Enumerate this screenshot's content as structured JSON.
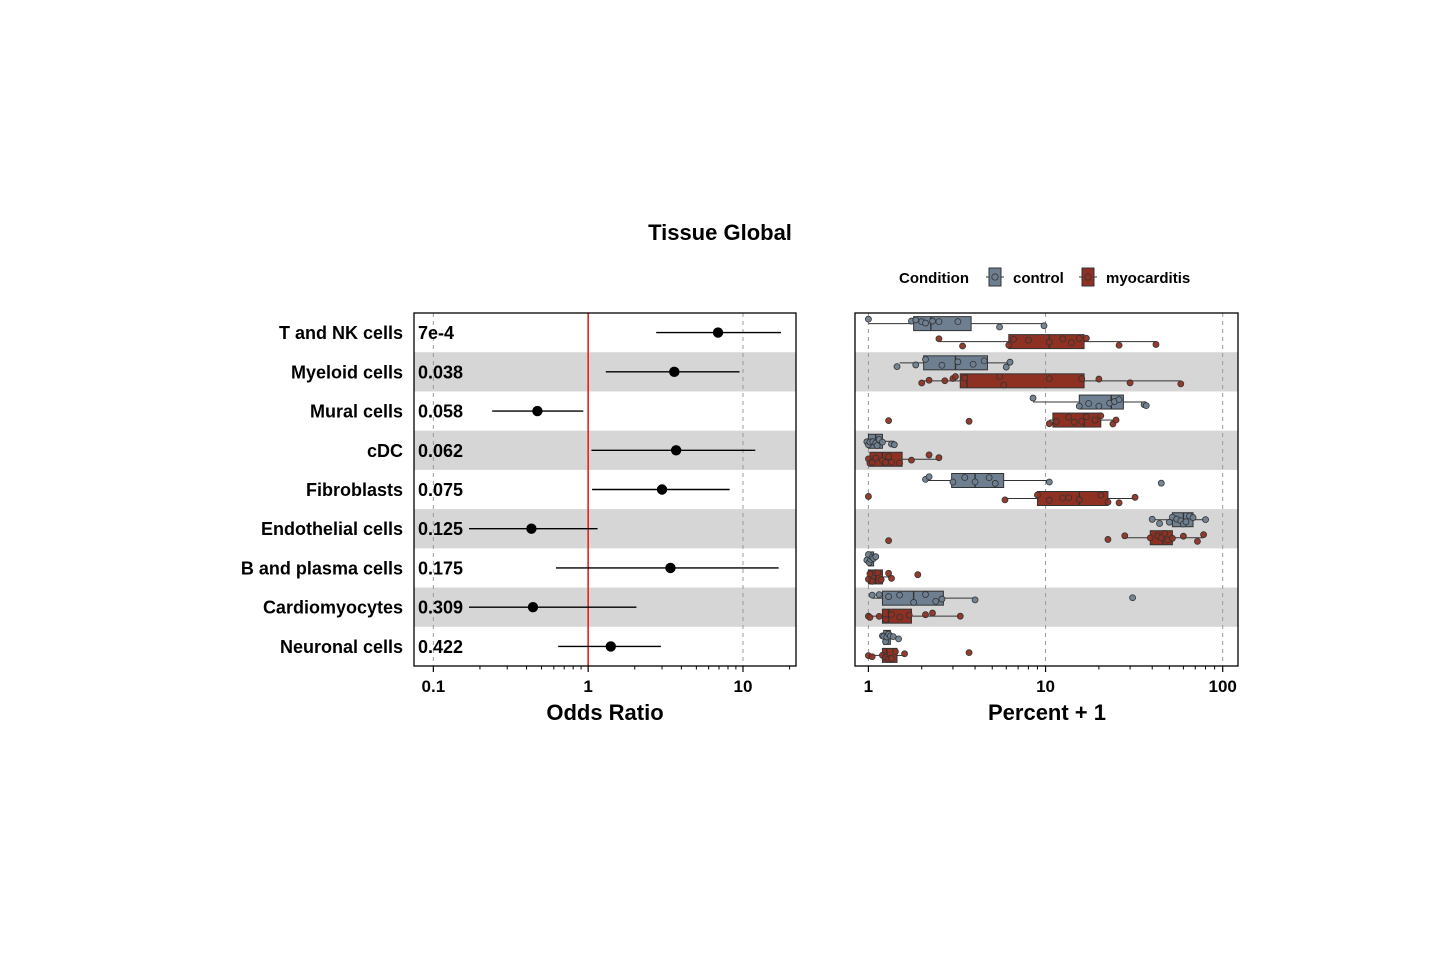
{
  "title": "Tissue Global",
  "legend": {
    "title": "Condition",
    "items": [
      {
        "label": "control",
        "color": "#6e7f91"
      },
      {
        "label": "myocarditis",
        "color": "#8e3123"
      }
    ]
  },
  "chart_data": [
    {
      "type": "forest",
      "xlabel": "Odds Ratio",
      "xscale": "log",
      "xlim": [
        0.075,
        22
      ],
      "xticks": [
        {
          "value": 0.1,
          "label": "0.1"
        },
        {
          "value": 1,
          "label": "1"
        },
        {
          "value": 10,
          "label": "10"
        }
      ],
      "reference_line": {
        "value": 1,
        "color": "#e8231e"
      },
      "row_shading": "alternating grey",
      "rows": [
        {
          "label": "T and NK cells",
          "pval": "7e-4",
          "or": 6.9,
          "lo": 2.75,
          "hi": 17.6
        },
        {
          "label": "Myeloid cells",
          "pval": "0.038",
          "or": 3.6,
          "lo": 1.3,
          "hi": 9.5
        },
        {
          "label": "Mural cells",
          "pval": "0.058",
          "or": 0.47,
          "lo": 0.24,
          "hi": 0.93
        },
        {
          "label": "cDC",
          "pval": "0.062",
          "or": 3.7,
          "lo": 1.05,
          "hi": 12.0
        },
        {
          "label": "Fibroblasts",
          "pval": "0.075",
          "or": 3.0,
          "lo": 1.06,
          "hi": 8.2
        },
        {
          "label": "Endothelial cells",
          "pval": "0.125",
          "or": 0.43,
          "lo": 0.17,
          "hi": 1.15
        },
        {
          "label": "B and plasma cells",
          "pval": "0.175",
          "or": 3.4,
          "lo": 0.62,
          "hi": 17.0
        },
        {
          "label": "Cardiomyocytes",
          "pval": "0.309",
          "or": 0.44,
          "lo": 0.17,
          "hi": 2.05
        },
        {
          "label": "Neuronal cells",
          "pval": "0.422",
          "or": 1.4,
          "lo": 0.64,
          "hi": 2.95
        }
      ]
    },
    {
      "type": "boxplot",
      "xlabel": "Percent + 1",
      "xscale": "log",
      "xlim": [
        0.84,
        122
      ],
      "xticks": [
        {
          "value": 1,
          "label": "1"
        },
        {
          "value": 10,
          "label": "10"
        },
        {
          "value": 100,
          "label": "100"
        }
      ],
      "grid": "vertical dashed at ticks",
      "series_names": [
        "control",
        "myocarditis"
      ],
      "rows": [
        {
          "label": "T and NK cells",
          "control": {
            "whisker_low": 1.0,
            "q1": 1.8,
            "median": 2.25,
            "q3": 3.8,
            "whisker_high": 9.8,
            "points": [
              1.0,
              1.75,
              1.85,
              2.0,
              2.1,
              2.3,
              2.5,
              3.2,
              5.5,
              9.8
            ]
          },
          "myocarditis": {
            "whisker_low": 2.5,
            "q1": 6.2,
            "median": 10.5,
            "q3": 16.5,
            "whisker_high": 42,
            "points": [
              2.5,
              3.4,
              6.2,
              6.6,
              8.0,
              10.5,
              12.5,
              14.0,
              15.5,
              17.0,
              26,
              42
            ]
          }
        },
        {
          "label": "Myeloid cells",
          "control": {
            "whisker_low": 1.5,
            "q1": 2.05,
            "median": 3.1,
            "q3": 4.7,
            "whisker_high": 6.2,
            "points": [
              1.45,
              1.85,
              2.1,
              2.6,
              3.2,
              3.9,
              4.5,
              6.0,
              6.3
            ]
          },
          "myocarditis": {
            "whisker_low": 2.0,
            "q1": 3.3,
            "median": 3.6,
            "q3": 16.5,
            "whisker_high": 58,
            "points": [
              2.0,
              2.2,
              2.7,
              3.0,
              3.1,
              3.5,
              5.5,
              5.8,
              10.5,
              16.0,
              20,
              30,
              58
            ]
          }
        },
        {
          "label": "Mural cells",
          "control": {
            "whisker_low": 8.5,
            "q1": 15.5,
            "median": 23.5,
            "q3": 27.5,
            "whisker_high": 37,
            "points": [
              8.5,
              15.5,
              17.5,
              20,
              23,
              24.5,
              26,
              36,
              37
            ]
          },
          "myocarditis": {
            "whisker_low": 10.5,
            "q1": 11.0,
            "median": 16.5,
            "q3": 20.5,
            "whisker_high": 25,
            "points": [
              1.3,
              3.7,
              10.5,
              11.5,
              13.5,
              14.5,
              16,
              17,
              19,
              20.5,
              24,
              25
            ]
          }
        },
        {
          "label": "cDC",
          "control": {
            "whisker_low": 1.0,
            "q1": 1.0,
            "median": 1.1,
            "q3": 1.2,
            "whisker_high": 1.4,
            "points": [
              0.98,
              1.0,
              1.02,
              1.06,
              1.1,
              1.12,
              1.15,
              1.2,
              1.35,
              1.4
            ]
          },
          "myocarditis": {
            "whisker_low": 1.0,
            "q1": 1.02,
            "median": 1.2,
            "q3": 1.55,
            "whisker_high": 2.5,
            "points": [
              1.0,
              1.02,
              1.05,
              1.1,
              1.2,
              1.25,
              1.3,
              1.35,
              1.5,
              1.75,
              2.2,
              2.5
            ]
          }
        },
        {
          "label": "Fibroblasts",
          "control": {
            "whisker_low": 2.1,
            "q1": 2.95,
            "median": 4.0,
            "q3": 5.8,
            "whisker_high": 10.5,
            "points": [
              2.1,
              2.2,
              3.0,
              3.5,
              4.0,
              4.8,
              5.2,
              10.5,
              45
            ]
          },
          "myocarditis": {
            "whisker_low": 5.9,
            "q1": 9.0,
            "median": 15.5,
            "q3": 22.5,
            "whisker_high": 32,
            "points": [
              1.0,
              5.9,
              9.0,
              10.5,
              12.5,
              13.5,
              15.5,
              20.5,
              22.5,
              26,
              32
            ]
          }
        },
        {
          "label": "Endothelial cells",
          "control": {
            "whisker_low": 40,
            "q1": 52,
            "median": 60,
            "q3": 68,
            "whisker_high": 80,
            "points": [
              40,
              44,
              50,
              52,
              55,
              58,
              60,
              62,
              65,
              68,
              80
            ]
          },
          "myocarditis": {
            "whisker_low": 28,
            "q1": 39,
            "median": 46,
            "q3": 52,
            "whisker_high": 78,
            "points": [
              1.3,
              22.5,
              28,
              39,
              43,
              45,
              47,
              49,
              52,
              60,
              72,
              78
            ]
          }
        },
        {
          "label": "B and plasma cells",
          "control": {
            "whisker_low": 1.0,
            "q1": 1.0,
            "median": 1.03,
            "q3": 1.07,
            "whisker_high": 1.1,
            "points": [
              0.98,
              1.0,
              1.01,
              1.03,
              1.05,
              1.07,
              1.1
            ]
          },
          "myocarditis": {
            "whisker_low": 1.0,
            "q1": 1.0,
            "median": 1.1,
            "q3": 1.2,
            "whisker_high": 1.35,
            "points": [
              1.0,
              1.02,
              1.05,
              1.1,
              1.13,
              1.18,
              1.3,
              1.35,
              1.9
            ]
          }
        },
        {
          "label": "Cardiomyocytes",
          "control": {
            "whisker_low": 1.05,
            "q1": 1.2,
            "median": 1.8,
            "q3": 2.65,
            "whisker_high": 4.0,
            "points": [
              1.05,
              1.15,
              1.3,
              1.5,
              1.8,
              2.1,
              2.4,
              2.6,
              4.0,
              31
            ]
          },
          "myocarditis": {
            "whisker_low": 1.0,
            "q1": 1.2,
            "median": 1.3,
            "q3": 1.75,
            "whisker_high": 3.3,
            "points": [
              1.0,
              1.02,
              1.15,
              1.25,
              1.35,
              1.5,
              1.7,
              2.1,
              2.3,
              3.3
            ]
          }
        },
        {
          "label": "Neuronal cells",
          "control": {
            "whisker_low": 1.2,
            "q1": 1.22,
            "median": 1.27,
            "q3": 1.33,
            "whisker_high": 1.48,
            "points": [
              1.2,
              1.22,
              1.25,
              1.27,
              1.3,
              1.33,
              1.38,
              1.48
            ]
          },
          "myocarditis": {
            "whisker_low": 1.0,
            "q1": 1.2,
            "median": 1.27,
            "q3": 1.45,
            "whisker_high": 1.6,
            "points": [
              1.0,
              1.05,
              1.2,
              1.25,
              1.3,
              1.35,
              1.42,
              1.6,
              3.7
            ]
          }
        }
      ]
    }
  ]
}
